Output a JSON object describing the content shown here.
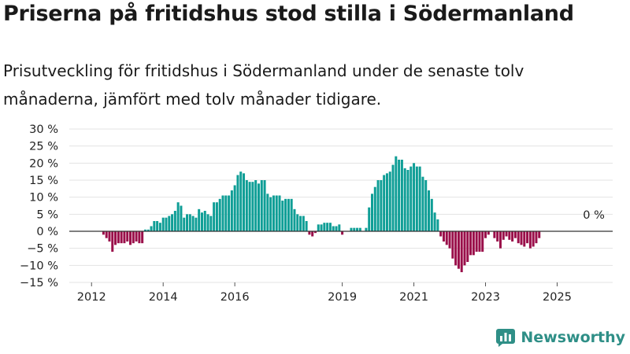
{
  "chart_data": {
    "type": "bar",
    "title": "Priserna på fritidshus stod stilla i Södermanland",
    "subtitle": "Prisutveckling för fritidshus i Södermanland under de senaste tolv månaderna, jämfört med tolv månader tidigare.",
    "unit": "%",
    "ylim": [
      -15,
      30
    ],
    "yticks": [
      30,
      25,
      20,
      15,
      10,
      5,
      0,
      -5,
      -10,
      -15
    ],
    "ytick_labels": [
      "30 %",
      "25 %",
      "20 %",
      "15 %",
      "10 %",
      "5 %",
      "0 %",
      "−5 %",
      "−10 %",
      "−15 %"
    ],
    "xticks": [
      {
        "label": "2012",
        "index": 6
      },
      {
        "label": "2014",
        "index": 30
      },
      {
        "label": "2016",
        "index": 54
      },
      {
        "label": "2019",
        "index": 90
      },
      {
        "label": "2021",
        "index": 114
      },
      {
        "label": "2023",
        "index": 138
      },
      {
        "label": "2025",
        "index": 162
      }
    ],
    "annotation": {
      "text": "0 %",
      "index": 171
    },
    "colors": {
      "positive": "#0f9e96",
      "negative": "#9a0f4a",
      "grid": "#e3e3e3",
      "zero": "#333333"
    },
    "values": [
      0,
      0,
      0,
      0,
      0,
      0,
      0,
      0,
      0,
      0,
      -1,
      -2,
      -3,
      -6,
      -4,
      -3.5,
      -3.5,
      -3.5,
      -3,
      -4,
      -3.5,
      -3,
      -3.5,
      -3.5,
      0.5,
      0.5,
      1.5,
      3,
      3,
      2.5,
      4,
      4,
      4.5,
      5,
      6,
      8.5,
      7.5,
      4,
      5,
      5,
      4.5,
      4,
      6.5,
      5.5,
      6,
      5,
      4.5,
      8.5,
      8.5,
      9.5,
      10.5,
      10.5,
      10.5,
      12,
      13.5,
      16.5,
      17.5,
      17,
      15,
      14.5,
      14.5,
      15,
      14,
      15,
      15,
      11,
      10,
      10.5,
      10.5,
      10.5,
      9,
      9.5,
      9.5,
      9.5,
      6.5,
      5,
      4.5,
      4.5,
      3,
      -1,
      -1.5,
      -0.5,
      2,
      2,
      2.5,
      2.5,
      2.5,
      1.5,
      1.5,
      2,
      -1,
      0,
      0,
      1,
      1,
      1,
      1,
      0,
      1,
      7,
      11,
      13,
      15,
      15,
      16.5,
      17,
      17.5,
      19.5,
      22,
      21,
      21,
      18.5,
      18,
      19,
      20,
      19,
      19,
      16,
      15,
      12,
      9.5,
      5.5,
      3.5,
      -1.5,
      -3,
      -4,
      -5,
      -8,
      -10,
      -11,
      -12,
      -10,
      -9,
      -7,
      -7,
      -6,
      -6,
      -6,
      -2,
      -1,
      0,
      -2,
      -3,
      -5,
      -2.5,
      -1.5,
      -2.5,
      -3,
      -2,
      -3.5,
      -4,
      -4.5,
      -3.5,
      -5,
      -4.5,
      -3.5,
      -2
    ]
  },
  "brand": {
    "name": "Newsworthy",
    "icon": "bar-chart-logo-icon"
  }
}
